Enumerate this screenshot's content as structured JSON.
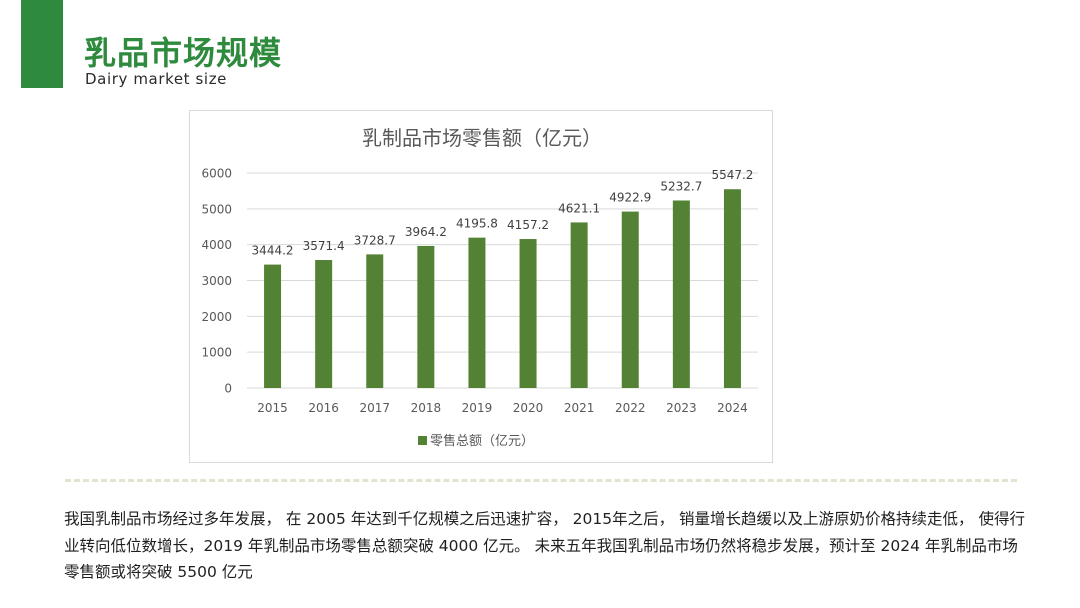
{
  "header": {
    "title": "乳品市场规模",
    "subtitle": "Dairy market size"
  },
  "colors": {
    "brand": "#2e8b3e",
    "bar": "#548235",
    "divider": "#dfe6cf"
  },
  "chart_data": {
    "type": "bar",
    "title": "乳制品市场零售额（亿元）",
    "categories": [
      "2015",
      "2016",
      "2017",
      "2018",
      "2019",
      "2020",
      "2021",
      "2022",
      "2023",
      "2024"
    ],
    "series": [
      {
        "name": "零售总额（亿元）",
        "values": [
          3444.2,
          3571.4,
          3728.7,
          3964.2,
          4195.8,
          4157.2,
          4621.1,
          4922.9,
          5232.7,
          5547.2
        ]
      }
    ],
    "data_labels": [
      "3444.2",
      "3571.4",
      "3728.7",
      "3964.2",
      "4195.8",
      "4157.2",
      "4621.1",
      "4922.9",
      "5232.7",
      "5547.2"
    ],
    "ylim": [
      0,
      6000
    ],
    "yticks": [
      "0",
      "1000",
      "2000",
      "3000",
      "4000",
      "5000",
      "6000"
    ],
    "grid": true,
    "legend_position": "bottom"
  },
  "body_text": "我国乳制品市场经过多年发展， 在 2005 年达到千亿规模之后迅速扩容， 2015年之后， 销量增长趋缓以及上游原奶价格持续走低， 使得行业转向低位数增长，2019 年乳制品市场零售总额突破 4000 亿元。 未来五年我国乳制品市场仍然将稳步发展，预计至 2024 年乳制品市场零售额或将突破 5500 亿元"
}
